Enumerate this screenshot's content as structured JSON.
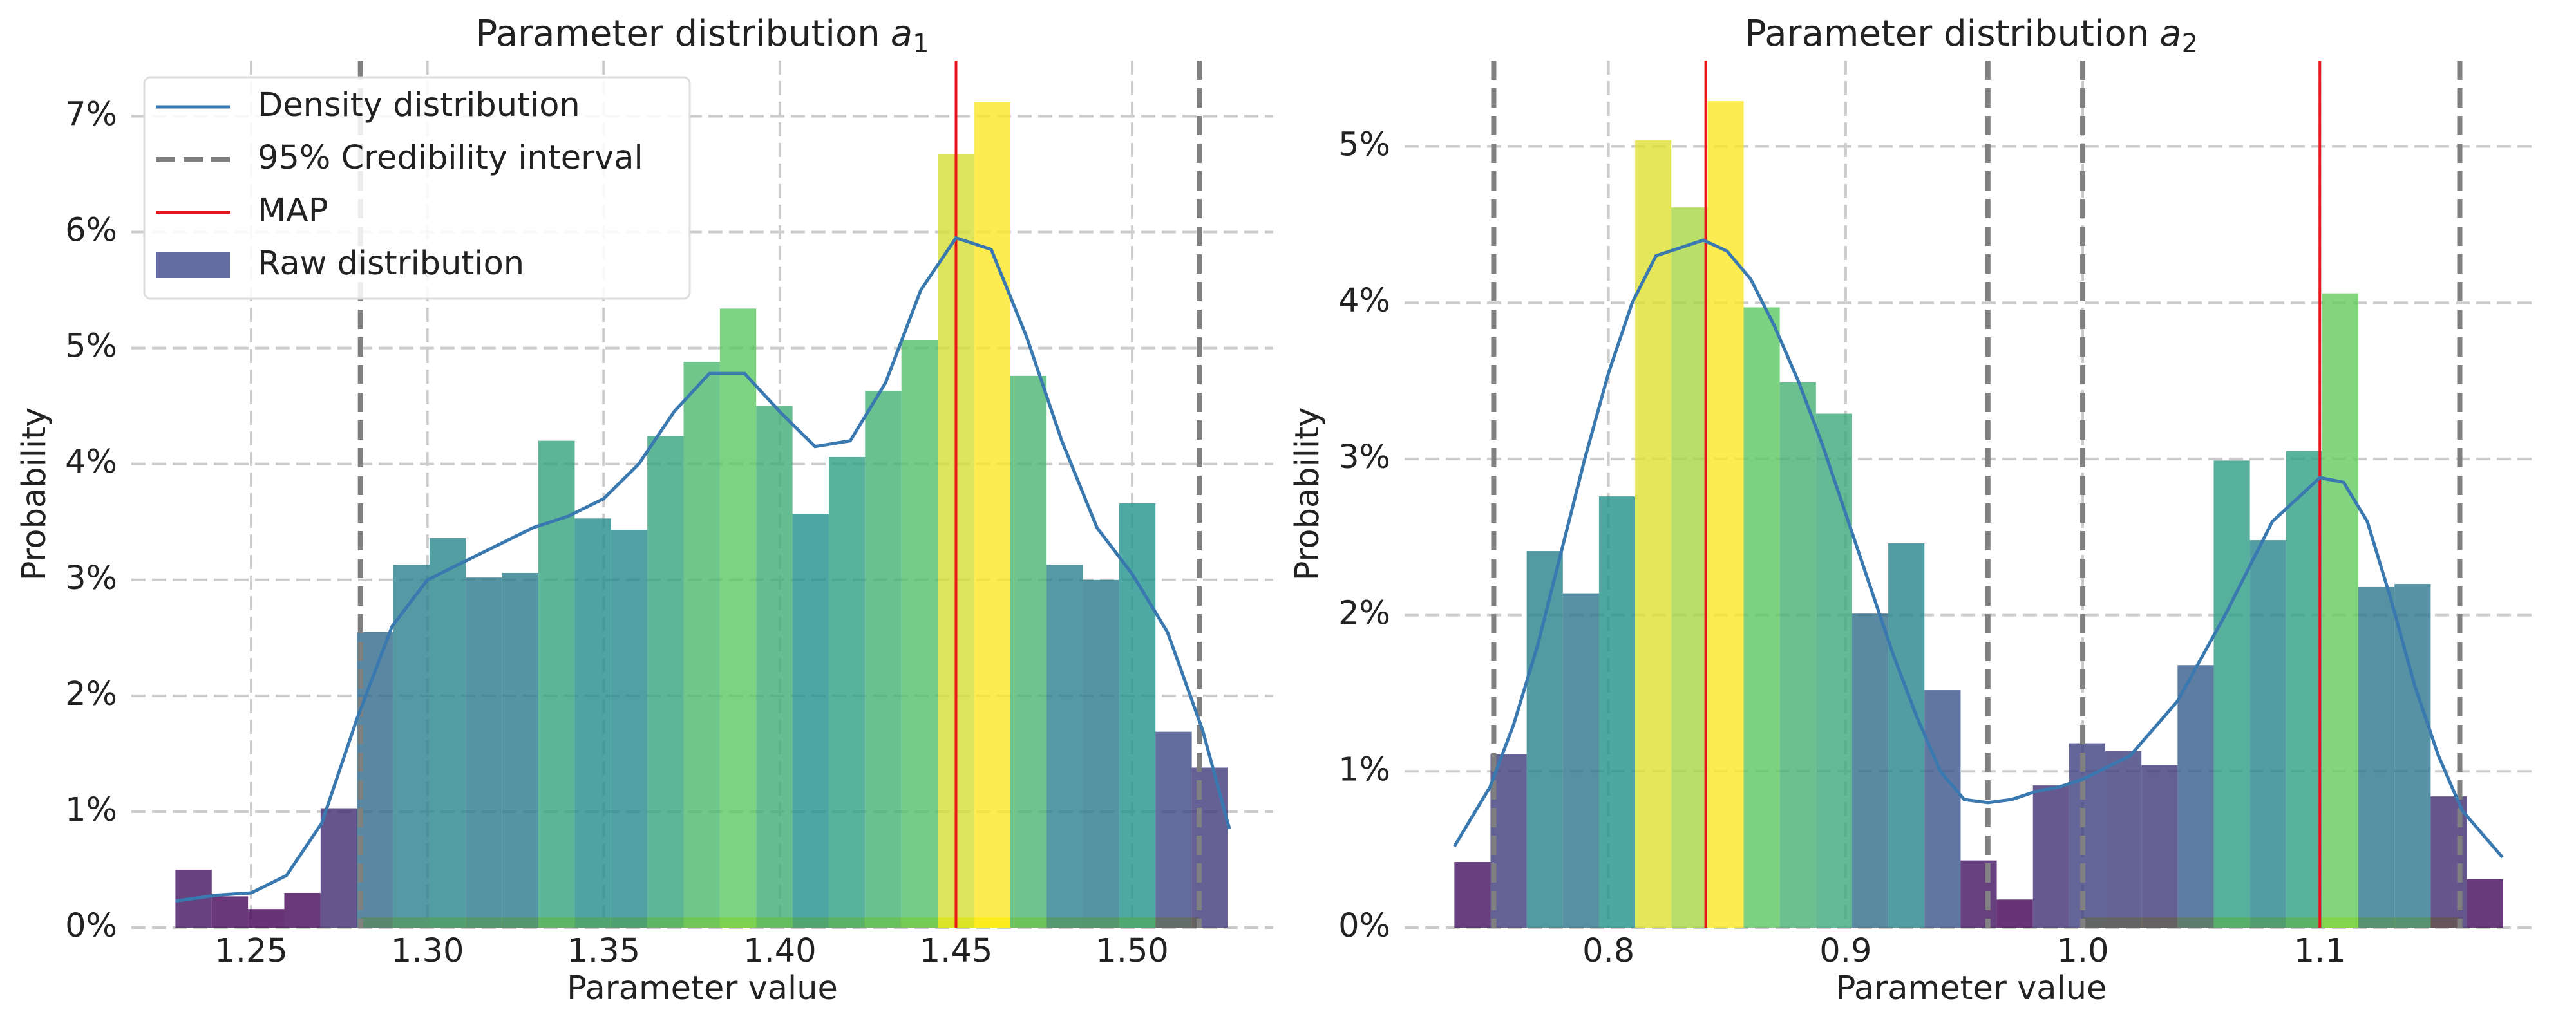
{
  "chart_data": [
    {
      "type": "histogram",
      "title": "Parameter distribution",
      "title_symbol": "a",
      "title_subscript": "1",
      "xlabel": "Parameter value",
      "ylabel": "Probability",
      "xlim": [
        1.216,
        1.54
      ],
      "ylim": [
        0,
        7.48
      ],
      "xticks": [
        1.25,
        {
          "value": 1.3,
          "label": "1.30"
        },
        1.35,
        {
          "value": 1.4,
          "label": "1.40"
        },
        1.45,
        {
          "value": 1.5,
          "label": "1.50"
        }
      ],
      "yticks": [
        {
          "value": 0,
          "label": "0%"
        },
        {
          "value": 1,
          "label": "1%"
        },
        {
          "value": 2,
          "label": "2%"
        },
        {
          "value": 3,
          "label": "3%"
        },
        {
          "value": 4,
          "label": "4%"
        },
        {
          "value": 5,
          "label": "5%"
        },
        {
          "value": 6,
          "label": "6%"
        },
        {
          "value": 7,
          "label": "7%"
        }
      ],
      "grid": true,
      "legend": "upper left",
      "name": "Raw distribution",
      "legend_color": "#646ba0",
      "colormap": [
        "#440154",
        "#3b528b",
        "#21918c",
        "#5ec962",
        "#fde725"
      ],
      "opacity": 0.8,
      "bins": [
        1.2285,
        1.2388,
        1.2491,
        1.2594,
        1.2697,
        1.28,
        1.2903,
        1.3006,
        1.3109,
        1.3212,
        1.3315,
        1.3418,
        1.3521,
        1.3624,
        1.3727,
        1.383,
        1.3933,
        1.4036,
        1.4139,
        1.4242,
        1.4345,
        1.4448,
        1.4551,
        1.4654,
        1.4757,
        1.486,
        1.4963,
        1.5066,
        1.5169,
        1.5272
      ],
      "values": [
        0.5,
        0.27,
        0.16,
        0.3,
        1.03,
        2.55,
        3.13,
        3.36,
        3.02,
        3.06,
        4.2,
        3.53,
        3.43,
        4.24,
        4.88,
        5.34,
        4.5,
        3.57,
        4.06,
        4.63,
        5.07,
        6.67,
        7.12,
        4.76,
        3.13,
        3.0,
        3.66,
        1.69,
        1.38
      ],
      "density": {
        "name": "Density distribution",
        "color": "#3a78b0",
        "x": [
          1.2286,
          1.24,
          1.25,
          1.26,
          1.27,
          1.28,
          1.29,
          1.3,
          1.31,
          1.32,
          1.33,
          1.34,
          1.35,
          1.36,
          1.37,
          1.38,
          1.39,
          1.4,
          1.41,
          1.42,
          1.43,
          1.44,
          1.45,
          1.46,
          1.47,
          1.48,
          1.49,
          1.5,
          1.51,
          1.52,
          1.5276
        ],
        "values": [
          0.23,
          0.28,
          0.3,
          0.45,
          0.9,
          1.8,
          2.6,
          3.0,
          3.15,
          3.3,
          3.45,
          3.55,
          3.7,
          4.0,
          4.45,
          4.78,
          4.78,
          4.45,
          4.15,
          4.2,
          4.7,
          5.5,
          5.95,
          5.85,
          5.1,
          4.2,
          3.45,
          3.05,
          2.55,
          1.7,
          0.85
        ]
      },
      "credibility": {
        "name": "95% Credibility interval",
        "color": "#808080",
        "values": [
          1.281,
          1.519
        ]
      },
      "map": {
        "name": "MAP",
        "color": "#e8151b",
        "values": [
          1.45
        ]
      },
      "highlight": {
        "color": "#ffff00",
        "values": [
          1.281,
          1.519
        ]
      }
    },
    {
      "type": "histogram",
      "title": "Parameter distribution",
      "title_symbol": "a",
      "title_subscript": "2",
      "xlabel": "Parameter value",
      "ylabel": "Probability",
      "xlim": [
        0.714,
        1.192
      ],
      "ylim": [
        0,
        5.55
      ],
      "xticks": [
        0.8,
        0.9,
        {
          "value": 1.0,
          "label": "1.0"
        },
        1.1
      ],
      "yticks": [
        {
          "value": 0,
          "label": "0%"
        },
        {
          "value": 1,
          "label": "1%"
        },
        {
          "value": 2,
          "label": "2%"
        },
        {
          "value": 3,
          "label": "3%"
        },
        {
          "value": 4,
          "label": "4%"
        },
        {
          "value": 5,
          "label": "5%"
        }
      ],
      "grid": true,
      "name": "Raw distribution",
      "colormap": [
        "#440154",
        "#3b528b",
        "#21918c",
        "#5ec962",
        "#fde725"
      ],
      "opacity": 0.8,
      "bins": [
        0.735,
        0.75025,
        0.7655,
        0.78075,
        0.796,
        0.81125,
        0.8265,
        0.84175,
        0.857,
        0.87225,
        0.8875,
        0.90275,
        0.918,
        0.93325,
        0.9485,
        0.96375,
        0.979,
        0.99425,
        1.0095,
        1.02475,
        1.04,
        1.05525,
        1.0705,
        1.08575,
        1.101,
        1.11625,
        1.1315,
        1.14675,
        1.162,
        1.17725
      ],
      "values": [
        0.42,
        1.11,
        2.41,
        2.14,
        2.76,
        5.04,
        4.61,
        5.29,
        3.97,
        3.49,
        3.29,
        2.01,
        2.46,
        1.52,
        0.43,
        0.18,
        0.91,
        1.18,
        1.13,
        1.04,
        1.68,
        2.99,
        2.48,
        3.05,
        4.06,
        2.18,
        2.2,
        0.84,
        0.31
      ],
      "density": {
        "name": "Density distribution",
        "color": "#3a78b0",
        "x": [
          0.735,
          0.75,
          0.76,
          0.77,
          0.78,
          0.79,
          0.8,
          0.81,
          0.82,
          0.84,
          0.85,
          0.86,
          0.87,
          0.88,
          0.89,
          0.9,
          0.91,
          0.92,
          0.93,
          0.94,
          0.95,
          0.96,
          0.97,
          0.98,
          0.99,
          1.0,
          1.02,
          1.04,
          1.06,
          1.08,
          1.1,
          1.11,
          1.12,
          1.13,
          1.14,
          1.15,
          1.16,
          1.177
        ],
        "values": [
          0.52,
          0.9,
          1.3,
          1.8,
          2.4,
          3.0,
          3.55,
          4.0,
          4.3,
          4.4,
          4.33,
          4.15,
          3.85,
          3.5,
          3.1,
          2.65,
          2.2,
          1.75,
          1.35,
          1.0,
          0.82,
          0.8,
          0.82,
          0.87,
          0.9,
          0.95,
          1.1,
          1.45,
          2.0,
          2.6,
          2.88,
          2.85,
          2.6,
          2.1,
          1.55,
          1.1,
          0.75,
          0.45
        ]
      },
      "credibility": {
        "name": "95% Credibility interval",
        "color": "#808080",
        "values": [
          0.7516,
          0.96,
          1.0,
          1.159
        ]
      },
      "map": {
        "name": "MAP",
        "color": "#e8151b",
        "values": [
          0.841,
          1.1
        ]
      },
      "highlight": {
        "color": "#ffff00",
        "values": [
          1.0,
          1.159
        ]
      }
    }
  ]
}
